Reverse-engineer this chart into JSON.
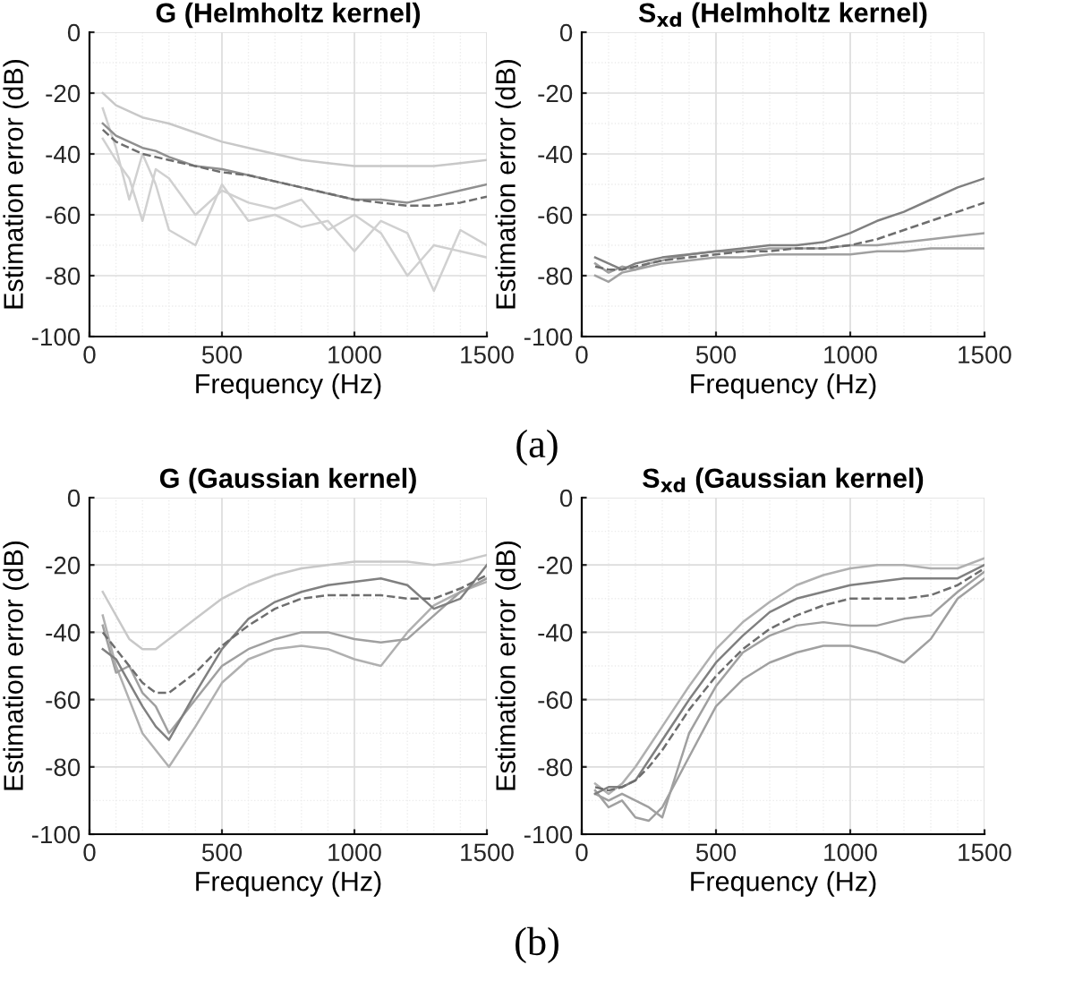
{
  "chart_data": [
    {
      "type": "line",
      "title": "G (Helmholtz kernel)",
      "xlabel": "Frequency (Hz)",
      "ylabel": "Estimation error (dB)",
      "xlim": [
        0,
        1500
      ],
      "xticks": [
        0,
        500,
        1000,
        1500
      ],
      "ylim": [
        -100,
        0
      ],
      "yticks": [
        -100,
        -80,
        -60,
        -40,
        -20,
        0
      ],
      "grid": true,
      "marker": "none",
      "x": [
        50,
        100,
        150,
        200,
        250,
        300,
        400,
        500,
        600,
        700,
        800,
        900,
        1000,
        1100,
        1200,
        1300,
        1400,
        1500
      ],
      "annotations": [
        "(a)"
      ],
      "series": [
        {
          "color": "#c8c8c8",
          "line_style": "solid",
          "values": [
            -20,
            -24,
            -26,
            -28,
            -29,
            -30,
            -33,
            -36,
            -38,
            -40,
            -42,
            -43,
            -44,
            -44,
            -44,
            -44,
            -43,
            -42
          ]
        },
        {
          "color": "#d0d0d0",
          "line_style": "solid",
          "values": [
            -35,
            -42,
            -48,
            -62,
            -45,
            -48,
            -60,
            -52,
            -56,
            -58,
            -55,
            -65,
            -60,
            -66,
            -80,
            -70,
            -72,
            -74
          ]
        },
        {
          "color": "#d0d0d0",
          "line_style": "solid",
          "values": [
            -25,
            -38,
            -55,
            -40,
            -50,
            -65,
            -70,
            -50,
            -62,
            -60,
            -64,
            -62,
            -72,
            -62,
            -66,
            -85,
            -65,
            -70
          ]
        },
        {
          "color": "#909090",
          "line_style": "solid",
          "values": [
            -30,
            -34,
            -36,
            -38,
            -39,
            -41,
            -44,
            -45,
            -47,
            -49,
            -51,
            -53,
            -55,
            -55,
            -56,
            -54,
            -52,
            -50
          ]
        },
        {
          "color": "#6e6e6e",
          "line_style": "dashed",
          "values": [
            -32,
            -36,
            -38,
            -40,
            -41,
            -42,
            -44,
            -46,
            -47,
            -49,
            -51,
            -53,
            -55,
            -56,
            -57,
            -57,
            -56,
            -54
          ]
        }
      ]
    },
    {
      "type": "line",
      "title": "S$_{xd}$ (Helmholtz kernel)",
      "xlabel": "Frequency (Hz)",
      "ylabel": "Estimation error (dB)",
      "xlim": [
        0,
        1500
      ],
      "xticks": [
        0,
        500,
        1000,
        1500
      ],
      "ylim": [
        -100,
        0
      ],
      "yticks": [
        -100,
        -80,
        -60,
        -40,
        -20,
        0
      ],
      "grid": true,
      "marker": "none",
      "x": [
        50,
        100,
        150,
        200,
        250,
        300,
        400,
        500,
        600,
        700,
        800,
        900,
        1000,
        1100,
        1200,
        1300,
        1400,
        1500
      ],
      "series": [
        {
          "color": "#a0a0a0",
          "line_style": "solid",
          "values": [
            -80,
            -82,
            -79,
            -78,
            -77,
            -76,
            -75,
            -74,
            -74,
            -73,
            -73,
            -73,
            -73,
            -72,
            -72,
            -71,
            -71,
            -71
          ]
        },
        {
          "color": "#a0a0a0",
          "line_style": "solid",
          "values": [
            -76,
            -79,
            -77,
            -78,
            -76,
            -75,
            -73,
            -72,
            -72,
            -71,
            -71,
            -71,
            -70,
            -70,
            -69,
            -68,
            -67,
            -66
          ]
        },
        {
          "color": "#808080",
          "line_style": "solid",
          "values": [
            -74,
            -76,
            -78,
            -76,
            -75,
            -74,
            -73,
            -72,
            -71,
            -70,
            -70,
            -69,
            -66,
            -62,
            -59,
            -55,
            -51,
            -48
          ]
        },
        {
          "color": "#6e6e6e",
          "line_style": "dashed",
          "values": [
            -77,
            -78,
            -78,
            -77,
            -76,
            -75,
            -74,
            -73,
            -72,
            -72,
            -71,
            -71,
            -70,
            -68,
            -65,
            -62,
            -59,
            -56
          ]
        }
      ]
    },
    {
      "type": "line",
      "title": "G (Gaussian kernel)",
      "xlabel": "Frequency (Hz)",
      "ylabel": "Estimation error (dB)",
      "xlim": [
        0,
        1500
      ],
      "xticks": [
        0,
        500,
        1000,
        1500
      ],
      "ylim": [
        -100,
        0
      ],
      "yticks": [
        -100,
        -80,
        -60,
        -40,
        -20,
        0
      ],
      "grid": true,
      "marker": "none",
      "x": [
        50,
        100,
        150,
        200,
        250,
        300,
        400,
        500,
        600,
        700,
        800,
        900,
        1000,
        1100,
        1200,
        1300,
        1400,
        1500
      ],
      "annotations": [
        "(b)"
      ],
      "series": [
        {
          "color": "#c8c8c8",
          "line_style": "solid",
          "values": [
            -28,
            -35,
            -42,
            -45,
            -45,
            -42,
            -36,
            -30,
            -26,
            -23,
            -21,
            -20,
            -19,
            -19,
            -19,
            -20,
            -19,
            -17
          ]
        },
        {
          "color": "#b0b0b0",
          "line_style": "solid",
          "values": [
            -35,
            -50,
            -60,
            -70,
            -75,
            -80,
            -68,
            -55,
            -48,
            -45,
            -44,
            -45,
            -48,
            -50,
            -40,
            -32,
            -28,
            -25
          ]
        },
        {
          "color": "#a0a0a0",
          "line_style": "solid",
          "values": [
            -38,
            -52,
            -50,
            -58,
            -62,
            -70,
            -60,
            -50,
            -45,
            -42,
            -40,
            -40,
            -42,
            -43,
            -42,
            -35,
            -28,
            -24
          ]
        },
        {
          "color": "#808080",
          "line_style": "solid",
          "values": [
            -45,
            -48,
            -55,
            -62,
            -68,
            -72,
            -58,
            -45,
            -36,
            -31,
            -28,
            -26,
            -25,
            -24,
            -26,
            -33,
            -30,
            -20
          ]
        },
        {
          "color": "#6e6e6e",
          "line_style": "dashed",
          "values": [
            -40,
            -45,
            -50,
            -55,
            -58,
            -58,
            -52,
            -44,
            -38,
            -33,
            -30,
            -29,
            -29,
            -29,
            -30,
            -30,
            -27,
            -23
          ]
        }
      ]
    },
    {
      "type": "line",
      "title": "S$_{xd}$ (Gaussian kernel)",
      "xlabel": "Frequency (Hz)",
      "ylabel": "Estimation error (dB)",
      "xlim": [
        0,
        1500
      ],
      "xticks": [
        0,
        500,
        1000,
        1500
      ],
      "ylim": [
        -100,
        0
      ],
      "yticks": [
        -100,
        -80,
        -60,
        -40,
        -20,
        0
      ],
      "grid": true,
      "marker": "none",
      "x": [
        50,
        100,
        150,
        200,
        250,
        300,
        400,
        500,
        600,
        700,
        800,
        900,
        1000,
        1100,
        1200,
        1300,
        1400,
        1500
      ],
      "series": [
        {
          "color": "#b0b0b0",
          "line_style": "solid",
          "values": [
            -85,
            -88,
            -85,
            -80,
            -74,
            -68,
            -56,
            -45,
            -37,
            -31,
            -26,
            -23,
            -21,
            -20,
            -20,
            -21,
            -21,
            -18
          ]
        },
        {
          "color": "#a0a0a0",
          "line_style": "solid",
          "values": [
            -87,
            -92,
            -90,
            -95,
            -96,
            -92,
            -77,
            -62,
            -54,
            -49,
            -46,
            -44,
            -44,
            -46,
            -49,
            -42,
            -30,
            -24
          ]
        },
        {
          "color": "#a0a0a0",
          "line_style": "solid",
          "values": [
            -88,
            -90,
            -88,
            -90,
            -92,
            -95,
            -70,
            -56,
            -46,
            -41,
            -38,
            -37,
            -38,
            -38,
            -36,
            -35,
            -28,
            -22
          ]
        },
        {
          "color": "#808080",
          "line_style": "solid",
          "values": [
            -88,
            -86,
            -86,
            -84,
            -78,
            -72,
            -60,
            -49,
            -41,
            -34,
            -30,
            -28,
            -26,
            -25,
            -24,
            -24,
            -24,
            -20
          ]
        },
        {
          "color": "#6e6e6e",
          "line_style": "dashed",
          "values": [
            -86,
            -87,
            -86,
            -84,
            -80,
            -75,
            -63,
            -53,
            -45,
            -39,
            -35,
            -32,
            -30,
            -30,
            -30,
            -29,
            -26,
            -21
          ]
        }
      ]
    }
  ]
}
